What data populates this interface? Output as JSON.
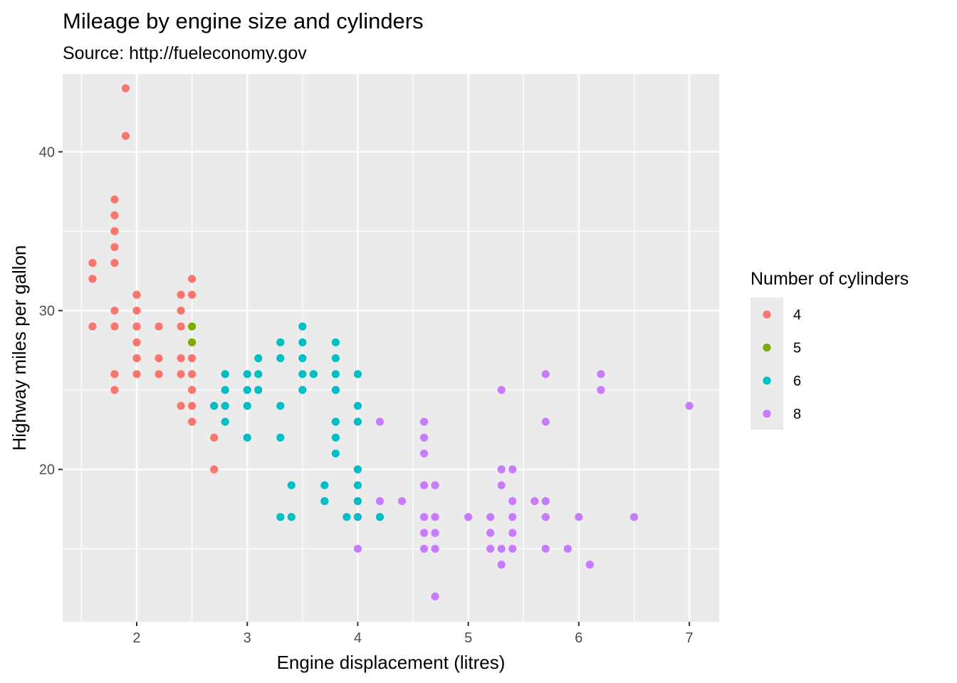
{
  "chart_data": {
    "type": "scatter",
    "title": "Mileage by engine size and cylinders",
    "subtitle": "Source: http://fueleconomy.gov",
    "xlabel": "Engine displacement (litres)",
    "ylabel": "Highway miles per gallon",
    "xlim": [
      1.33,
      7.27
    ],
    "ylim": [
      10.4,
      44.9
    ],
    "xticks": [
      2,
      3,
      4,
      5,
      6,
      7
    ],
    "yticks": [
      20,
      30,
      40
    ],
    "grid": true,
    "legend": {
      "title": "Number of cylinders",
      "position": "right",
      "entries": [
        {
          "label": "4",
          "color": "#F8766D"
        },
        {
          "label": "5",
          "color": "#7CAE00"
        },
        {
          "label": "6",
          "color": "#00BFC4"
        },
        {
          "label": "8",
          "color": "#C77CFF"
        }
      ]
    },
    "series": [
      {
        "name": "4",
        "color": "#F8766D",
        "points": [
          [
            1.6,
            33
          ],
          [
            1.6,
            32
          ],
          [
            1.6,
            29
          ],
          [
            1.8,
            37
          ],
          [
            1.8,
            36
          ],
          [
            1.8,
            35
          ],
          [
            1.8,
            34
          ],
          [
            1.8,
            33
          ],
          [
            1.8,
            30
          ],
          [
            1.8,
            29
          ],
          [
            1.8,
            26
          ],
          [
            1.8,
            25
          ],
          [
            1.9,
            44
          ],
          [
            1.9,
            41
          ],
          [
            2.0,
            31
          ],
          [
            2.0,
            30
          ],
          [
            2.0,
            29
          ],
          [
            2.0,
            28
          ],
          [
            2.0,
            27
          ],
          [
            2.0,
            26
          ],
          [
            2.2,
            29
          ],
          [
            2.2,
            27
          ],
          [
            2.2,
            26
          ],
          [
            2.4,
            31
          ],
          [
            2.4,
            30
          ],
          [
            2.4,
            29
          ],
          [
            2.4,
            27
          ],
          [
            2.4,
            26
          ],
          [
            2.4,
            24
          ],
          [
            2.5,
            32
          ],
          [
            2.5,
            31
          ],
          [
            2.5,
            27
          ],
          [
            2.5,
            26
          ],
          [
            2.5,
            25
          ],
          [
            2.5,
            24
          ],
          [
            2.5,
            23
          ],
          [
            2.7,
            22
          ],
          [
            2.7,
            20
          ]
        ]
      },
      {
        "name": "5",
        "color": "#7CAE00",
        "points": [
          [
            2.5,
            29
          ],
          [
            2.5,
            28
          ]
        ]
      },
      {
        "name": "6",
        "color": "#00BFC4",
        "points": [
          [
            2.7,
            24
          ],
          [
            2.8,
            26
          ],
          [
            2.8,
            25
          ],
          [
            2.8,
            24
          ],
          [
            2.8,
            23
          ],
          [
            3.0,
            26
          ],
          [
            3.0,
            25
          ],
          [
            3.0,
            24
          ],
          [
            3.0,
            22
          ],
          [
            3.1,
            27
          ],
          [
            3.1,
            26
          ],
          [
            3.1,
            25
          ],
          [
            3.3,
            28
          ],
          [
            3.3,
            27
          ],
          [
            3.3,
            24
          ],
          [
            3.3,
            22
          ],
          [
            3.3,
            17
          ],
          [
            3.4,
            19
          ],
          [
            3.4,
            17
          ],
          [
            3.5,
            29
          ],
          [
            3.5,
            28
          ],
          [
            3.5,
            27
          ],
          [
            3.5,
            26
          ],
          [
            3.5,
            25
          ],
          [
            3.6,
            26
          ],
          [
            3.7,
            19
          ],
          [
            3.7,
            18
          ],
          [
            3.8,
            28
          ],
          [
            3.8,
            27
          ],
          [
            3.8,
            26
          ],
          [
            3.8,
            25
          ],
          [
            3.8,
            23
          ],
          [
            3.8,
            22
          ],
          [
            3.8,
            21
          ],
          [
            3.9,
            17
          ],
          [
            4.0,
            26
          ],
          [
            4.0,
            24
          ],
          [
            4.0,
            23
          ],
          [
            4.0,
            20
          ],
          [
            4.0,
            19
          ],
          [
            4.0,
            18
          ],
          [
            4.0,
            17
          ],
          [
            4.2,
            17
          ]
        ]
      },
      {
        "name": "8",
        "color": "#C77CFF",
        "points": [
          [
            4.0,
            15
          ],
          [
            4.2,
            23
          ],
          [
            4.2,
            18
          ],
          [
            4.4,
            18
          ],
          [
            4.6,
            23
          ],
          [
            4.6,
            22
          ],
          [
            4.6,
            21
          ],
          [
            4.6,
            19
          ],
          [
            4.6,
            17
          ],
          [
            4.6,
            16
          ],
          [
            4.6,
            15
          ],
          [
            4.7,
            19
          ],
          [
            4.7,
            17
          ],
          [
            4.7,
            16
          ],
          [
            4.7,
            15
          ],
          [
            4.7,
            12
          ],
          [
            5.0,
            17
          ],
          [
            5.2,
            17
          ],
          [
            5.2,
            16
          ],
          [
            5.2,
            15
          ],
          [
            5.3,
            25
          ],
          [
            5.3,
            20
          ],
          [
            5.3,
            19
          ],
          [
            5.3,
            15
          ],
          [
            5.3,
            14
          ],
          [
            5.4,
            20
          ],
          [
            5.4,
            18
          ],
          [
            5.4,
            17
          ],
          [
            5.4,
            16
          ],
          [
            5.4,
            15
          ],
          [
            5.6,
            18
          ],
          [
            5.7,
            26
          ],
          [
            5.7,
            23
          ],
          [
            5.7,
            18
          ],
          [
            5.7,
            17
          ],
          [
            5.7,
            15
          ],
          [
            5.9,
            15
          ],
          [
            6.0,
            17
          ],
          [
            6.1,
            14
          ],
          [
            6.2,
            26
          ],
          [
            6.2,
            25
          ],
          [
            6.5,
            17
          ],
          [
            7.0,
            24
          ]
        ]
      }
    ]
  }
}
